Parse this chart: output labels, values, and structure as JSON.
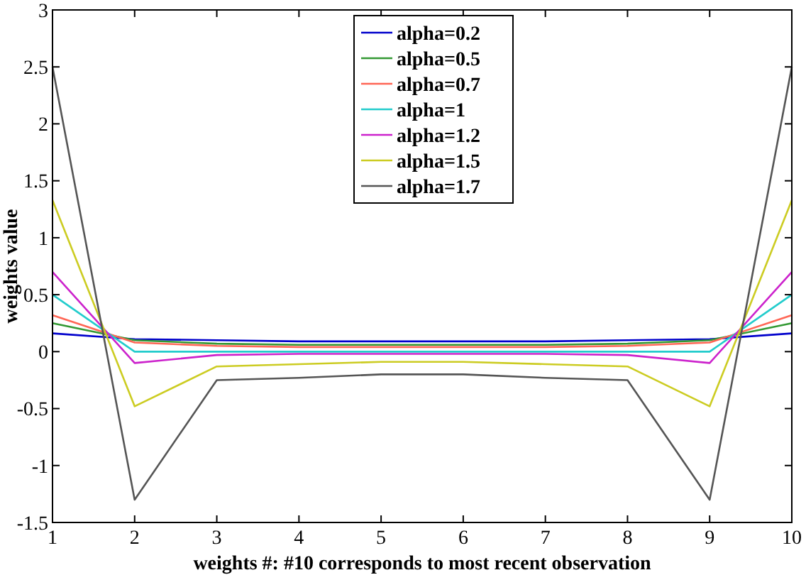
{
  "chart_data": {
    "type": "line",
    "xlabel": "weights #: #10 corresponds to most recent observation",
    "ylabel": "weights value",
    "x": [
      1,
      2,
      3,
      4,
      5,
      6,
      7,
      8,
      9,
      10
    ],
    "xlim": [
      1,
      10
    ],
    "xticks": [
      1,
      2,
      3,
      4,
      5,
      6,
      7,
      8,
      9,
      10
    ],
    "ylim": [
      -1.5,
      3
    ],
    "yticks": [
      -1.5,
      -1,
      -0.5,
      0,
      0.5,
      1,
      1.5,
      2,
      2.5,
      3
    ],
    "grid": false,
    "legend": "top",
    "marker": "none",
    "line_style": "solid",
    "series": [
      {
        "name": "alpha=0.2",
        "color": "#0000cc",
        "values": [
          0.16,
          0.11,
          0.1,
          0.09,
          0.09,
          0.09,
          0.09,
          0.1,
          0.11,
          0.16
        ]
      },
      {
        "name": "alpha=0.5",
        "color": "#339933",
        "values": [
          0.25,
          0.1,
          0.07,
          0.06,
          0.06,
          0.06,
          0.06,
          0.07,
          0.1,
          0.25
        ]
      },
      {
        "name": "alpha=0.7",
        "color": "#ff6655",
        "values": [
          0.32,
          0.08,
          0.05,
          0.04,
          0.04,
          0.04,
          0.04,
          0.05,
          0.08,
          0.32
        ]
      },
      {
        "name": "alpha=1",
        "color": "#22cccc",
        "values": [
          0.5,
          0,
          0,
          0,
          0,
          0,
          0,
          0,
          0,
          0.5
        ]
      },
      {
        "name": "alpha=1.2",
        "color": "#cc22cc",
        "values": [
          0.7,
          -0.1,
          -0.03,
          -0.02,
          -0.02,
          -0.02,
          -0.02,
          -0.03,
          -0.1,
          0.7
        ]
      },
      {
        "name": "alpha=1.5",
        "color": "#cccc22",
        "values": [
          1.33,
          -0.48,
          -0.13,
          -0.11,
          -0.09,
          -0.09,
          -0.11,
          -0.13,
          -0.48,
          1.33
        ]
      },
      {
        "name": "alpha=1.7",
        "color": "#555555",
        "values": [
          2.5,
          -1.3,
          -0.25,
          -0.23,
          -0.2,
          -0.2,
          -0.23,
          -0.25,
          -1.3,
          2.5
        ]
      }
    ]
  }
}
